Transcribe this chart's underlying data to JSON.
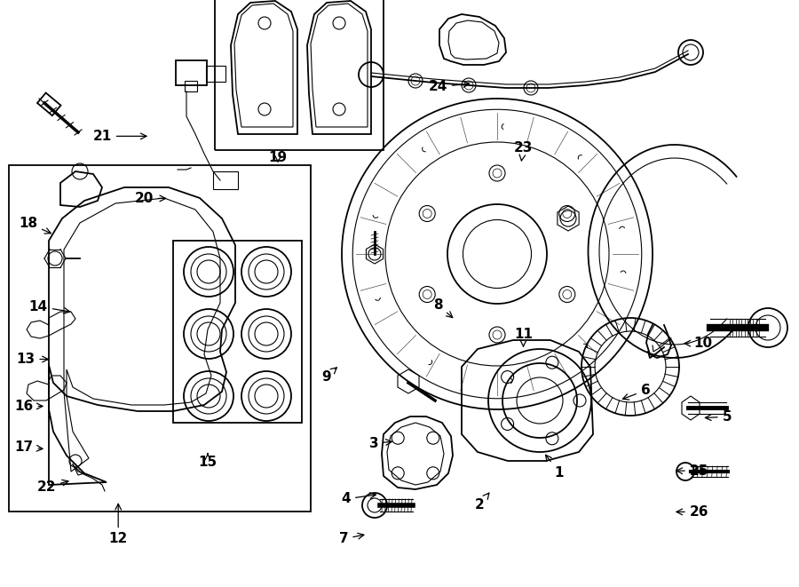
{
  "bg_color": "#ffffff",
  "line_color": "#000000",
  "fig_width": 9.0,
  "fig_height": 6.61,
  "dpi": 100,
  "label_positions": {
    "1": [
      0.7,
      0.195,
      0.68,
      0.23
    ],
    "2": [
      0.6,
      0.14,
      0.615,
      0.165
    ],
    "3": [
      0.468,
      0.245,
      0.495,
      0.248
    ],
    "4": [
      0.433,
      0.15,
      0.475,
      0.158
    ],
    "5": [
      0.91,
      0.29,
      0.878,
      0.288
    ],
    "6": [
      0.808,
      0.335,
      0.775,
      0.318
    ],
    "7": [
      0.43,
      0.082,
      0.46,
      0.09
    ],
    "8": [
      0.548,
      0.48,
      0.57,
      0.455
    ],
    "9": [
      0.408,
      0.358,
      0.425,
      0.378
    ],
    "10": [
      0.88,
      0.415,
      0.852,
      0.415
    ],
    "11": [
      0.655,
      0.43,
      0.655,
      0.408
    ],
    "12": [
      0.148,
      0.082,
      0.148,
      0.148
    ],
    "13": [
      0.032,
      0.388,
      0.065,
      0.388
    ],
    "14": [
      0.048,
      0.478,
      0.092,
      0.468
    ],
    "15": [
      0.26,
      0.212,
      0.26,
      0.228
    ],
    "16": [
      0.03,
      0.308,
      0.058,
      0.308
    ],
    "17": [
      0.03,
      0.238,
      0.058,
      0.235
    ],
    "18": [
      0.035,
      0.62,
      0.068,
      0.6
    ],
    "19": [
      0.348,
      0.732,
      0.348,
      0.718
    ],
    "20": [
      0.18,
      0.662,
      0.212,
      0.662
    ],
    "21": [
      0.128,
      0.768,
      0.188,
      0.768
    ],
    "22": [
      0.058,
      0.17,
      0.09,
      0.182
    ],
    "23": [
      0.655,
      0.748,
      0.652,
      0.72
    ],
    "24": [
      0.548,
      0.852,
      0.592,
      0.858
    ],
    "25": [
      0.875,
      0.198,
      0.842,
      0.198
    ],
    "26": [
      0.875,
      0.128,
      0.842,
      0.128
    ]
  }
}
